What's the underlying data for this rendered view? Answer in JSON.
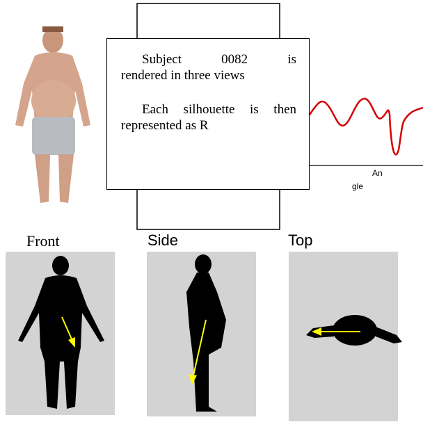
{
  "box": {
    "paragraphs": [
      [
        "Subject 0082 is",
        "rendered in three views"
      ],
      [
        "Each silhouette is then",
        "represented as R"
      ]
    ]
  },
  "plot": {
    "axis_label_parts": [
      "An",
      "gle"
    ]
  },
  "views": [
    {
      "label": "Front"
    },
    {
      "label": "Side"
    },
    {
      "label": "Top"
    }
  ]
}
